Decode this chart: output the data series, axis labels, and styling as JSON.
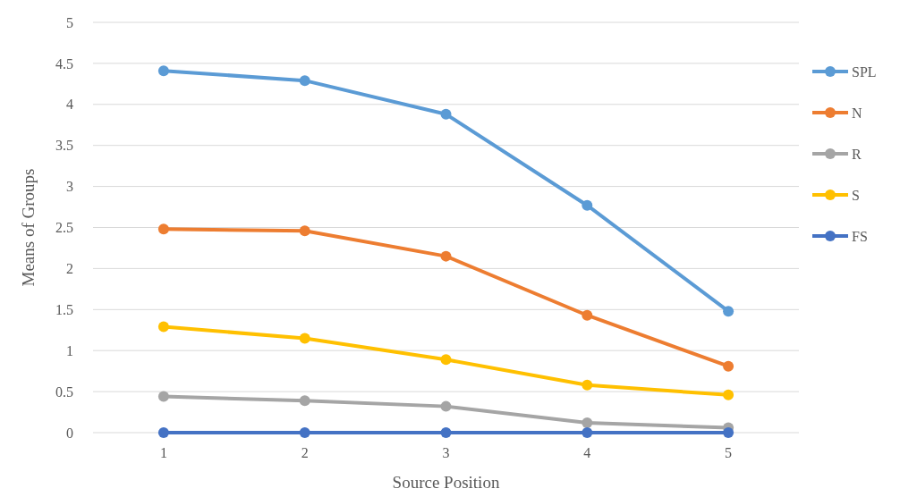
{
  "chart_data": {
    "type": "line",
    "xlabel": "Source Position",
    "ylabel": "Means of Groups",
    "categories": [
      "1",
      "2",
      "3",
      "4",
      "5"
    ],
    "ylim": [
      0,
      5
    ],
    "yticks": [
      0,
      0.5,
      1,
      1.5,
      2,
      2.5,
      3,
      3.5,
      4,
      4.5,
      5
    ],
    "grid": "y",
    "legend": "right",
    "marker": "circle",
    "line_style": "solid",
    "series": [
      {
        "name": "SPL",
        "color": "#5b9bd5",
        "values": [
          4.41,
          4.29,
          3.88,
          2.77,
          1.48
        ]
      },
      {
        "name": "N",
        "color": "#ed7d31",
        "values": [
          2.48,
          2.46,
          2.15,
          1.43,
          0.81
        ]
      },
      {
        "name": "R",
        "color": "#a5a5a5",
        "values": [
          0.44,
          0.39,
          0.32,
          0.12,
          0.06
        ]
      },
      {
        "name": "S",
        "color": "#ffc000",
        "values": [
          1.29,
          1.15,
          0.89,
          0.58,
          0.46
        ]
      },
      {
        "name": "FS",
        "color": "#4472c4",
        "values": [
          0,
          0,
          0,
          0,
          0
        ]
      }
    ]
  }
}
